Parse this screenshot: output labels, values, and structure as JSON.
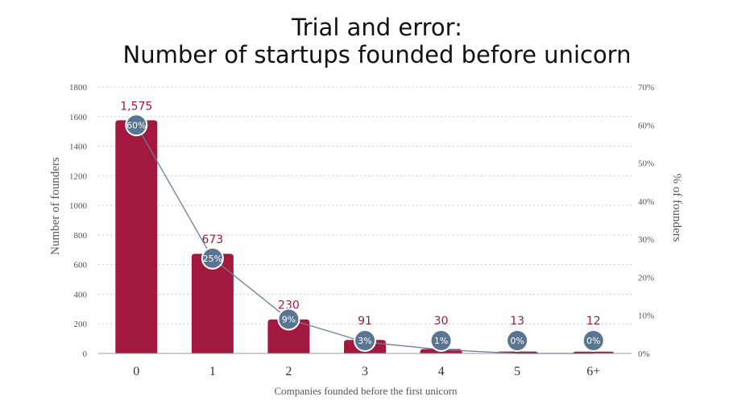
{
  "chart_data": {
    "type": "bar",
    "title": [
      "Trial and error:",
      "Number of startups founded before unicorn"
    ],
    "categories": [
      "0",
      "1",
      "2",
      "3",
      "4",
      "5",
      "6+"
    ],
    "series": [
      {
        "name": "Number of founders",
        "axis": "left",
        "kind": "bar",
        "values": [
          1575,
          673,
          230,
          91,
          30,
          13,
          12
        ],
        "labels": [
          "1,575",
          "673",
          "230",
          "91",
          "30",
          "13",
          "12"
        ]
      },
      {
        "name": "% of founders",
        "axis": "right",
        "kind": "line",
        "values": [
          60,
          25,
          9,
          3,
          1,
          0,
          0
        ],
        "labels": [
          "60%",
          "25%",
          "9%",
          "3%",
          "1%",
          "0%",
          "0%"
        ]
      }
    ],
    "xlabel": "Companies founded before the first unicorn",
    "ylabel": "Number of founders",
    "y2label": "% of founders",
    "ylim": [
      0,
      1800
    ],
    "yticks": [
      "0",
      "200",
      "400",
      "600",
      "800",
      "1000",
      "1200",
      "1400",
      "1600",
      "1800"
    ],
    "y2lim": [
      0,
      70
    ],
    "y2ticks": [
      "0%",
      "10%",
      "20%",
      "30%",
      "40%",
      "50%",
      "60%",
      "70%"
    ],
    "colors": {
      "bar": "#a3193e",
      "line": "#6e7f96",
      "marker": "#5a7591",
      "marker_stroke": "#ffffff",
      "grid": "#cccccc"
    }
  }
}
